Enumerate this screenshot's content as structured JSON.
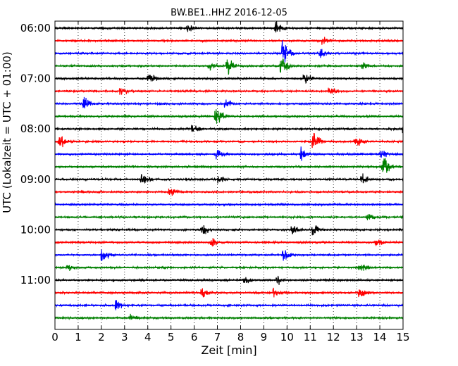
{
  "chart_data": {
    "type": "line",
    "title": "BW.BE1..HHZ 2016-12-05",
    "xlabel": "Zeit  [min]",
    "ylabel": "UTC (Lokalzeit = UTC + 01:00)",
    "xlim": [
      0,
      15
    ],
    "x_ticks": [
      0,
      1,
      2,
      3,
      4,
      5,
      6,
      7,
      8,
      9,
      10,
      11,
      12,
      13,
      14,
      15
    ],
    "x_tick_labels": [
      "0",
      "1",
      "2",
      "3",
      "4",
      "5",
      "6",
      "7",
      "8",
      "9",
      "10",
      "11",
      "12",
      "13",
      "14",
      "15"
    ],
    "y_tick_labels": [
      {
        "label": "06:00",
        "row": 0
      },
      {
        "label": "07:00",
        "row": 4
      },
      {
        "label": "08:00",
        "row": 8
      },
      {
        "label": "09:00",
        "row": 12
      },
      {
        "label": "10:00",
        "row": 16
      },
      {
        "label": "11:00",
        "row": 20
      }
    ],
    "grid": {
      "vertical": true,
      "style": "dotted"
    },
    "colors": [
      "#000000",
      "#ff0000",
      "#0000ff",
      "#008000"
    ],
    "row_count": 24,
    "minutes_per_row": 15,
    "rows": [
      {
        "start": "06:00",
        "color": "#000000",
        "events": [
          {
            "t": 5.7,
            "a": 0.25
          },
          {
            "t": 9.5,
            "a": 0.5
          }
        ]
      },
      {
        "start": "06:15",
        "color": "#ff0000",
        "events": [
          {
            "t": 11.5,
            "a": 0.25
          }
        ]
      },
      {
        "start": "06:30",
        "color": "#0000ff",
        "events": [
          {
            "t": 9.8,
            "a": 1.0
          },
          {
            "t": 11.4,
            "a": 0.35
          }
        ]
      },
      {
        "start": "06:45",
        "color": "#008000",
        "events": [
          {
            "t": 6.6,
            "a": 0.3
          },
          {
            "t": 7.4,
            "a": 0.6
          },
          {
            "t": 9.7,
            "a": 0.7
          },
          {
            "t": 13.2,
            "a": 0.3
          }
        ]
      },
      {
        "start": "07:00",
        "color": "#000000",
        "events": [
          {
            "t": 4.0,
            "a": 0.4
          },
          {
            "t": 10.7,
            "a": 0.35
          }
        ]
      },
      {
        "start": "07:15",
        "color": "#ff0000",
        "events": [
          {
            "t": 2.8,
            "a": 0.3
          },
          {
            "t": 11.8,
            "a": 0.3
          }
        ]
      },
      {
        "start": "07:30",
        "color": "#0000ff",
        "events": [
          {
            "t": 1.2,
            "a": 0.45
          },
          {
            "t": 7.3,
            "a": 0.3
          }
        ]
      },
      {
        "start": "07:45",
        "color": "#008000",
        "events": [
          {
            "t": 6.9,
            "a": 0.7
          }
        ]
      },
      {
        "start": "08:00",
        "color": "#000000",
        "events": [
          {
            "t": 5.9,
            "a": 0.25
          },
          {
            "t": 15.0,
            "a": 0.4
          }
        ]
      },
      {
        "start": "08:15",
        "color": "#ff0000",
        "events": [
          {
            "t": 0.15,
            "a": 0.45
          },
          {
            "t": 11.1,
            "a": 0.6
          },
          {
            "t": 12.9,
            "a": 0.5
          }
        ]
      },
      {
        "start": "08:30",
        "color": "#0000ff",
        "events": [
          {
            "t": 6.9,
            "a": 0.45
          },
          {
            "t": 10.6,
            "a": 0.5
          },
          {
            "t": 14.0,
            "a": 0.35
          }
        ]
      },
      {
        "start": "08:45",
        "color": "#008000",
        "events": [
          {
            "t": 14.1,
            "a": 1.0
          }
        ]
      },
      {
        "start": "09:00",
        "color": "#000000",
        "events": [
          {
            "t": 3.7,
            "a": 0.5
          },
          {
            "t": 7.0,
            "a": 0.3
          },
          {
            "t": 13.2,
            "a": 0.4
          }
        ]
      },
      {
        "start": "09:15",
        "color": "#ff0000",
        "events": [
          {
            "t": 4.9,
            "a": 0.3
          }
        ]
      },
      {
        "start": "09:30",
        "color": "#0000ff",
        "events": []
      },
      {
        "start": "09:45",
        "color": "#008000",
        "events": [
          {
            "t": 13.4,
            "a": 0.3
          }
        ]
      },
      {
        "start": "10:00",
        "color": "#000000",
        "events": [
          {
            "t": 6.3,
            "a": 0.4
          },
          {
            "t": 10.2,
            "a": 0.35
          },
          {
            "t": 11.1,
            "a": 0.35
          }
        ]
      },
      {
        "start": "10:15",
        "color": "#ff0000",
        "events": [
          {
            "t": 6.7,
            "a": 0.35
          },
          {
            "t": 13.8,
            "a": 0.3
          }
        ]
      },
      {
        "start": "10:30",
        "color": "#0000ff",
        "events": [
          {
            "t": 2.0,
            "a": 0.45
          },
          {
            "t": 9.8,
            "a": 0.55
          }
        ]
      },
      {
        "start": "10:45",
        "color": "#008000",
        "events": [
          {
            "t": 0.5,
            "a": 0.25
          },
          {
            "t": 13.1,
            "a": 0.35
          }
        ]
      },
      {
        "start": "11:00",
        "color": "#000000",
        "events": [
          {
            "t": 8.1,
            "a": 0.25
          },
          {
            "t": 9.5,
            "a": 0.3
          }
        ]
      },
      {
        "start": "11:15",
        "color": "#ff0000",
        "events": [
          {
            "t": 6.3,
            "a": 0.35
          },
          {
            "t": 9.4,
            "a": 0.3
          },
          {
            "t": 13.1,
            "a": 0.35
          }
        ]
      },
      {
        "start": "11:30",
        "color": "#0000ff",
        "events": [
          {
            "t": 2.6,
            "a": 0.4
          }
        ]
      },
      {
        "start": "11:45",
        "color": "#008000",
        "events": [
          {
            "t": 3.2,
            "a": 0.25
          }
        ]
      }
    ]
  }
}
